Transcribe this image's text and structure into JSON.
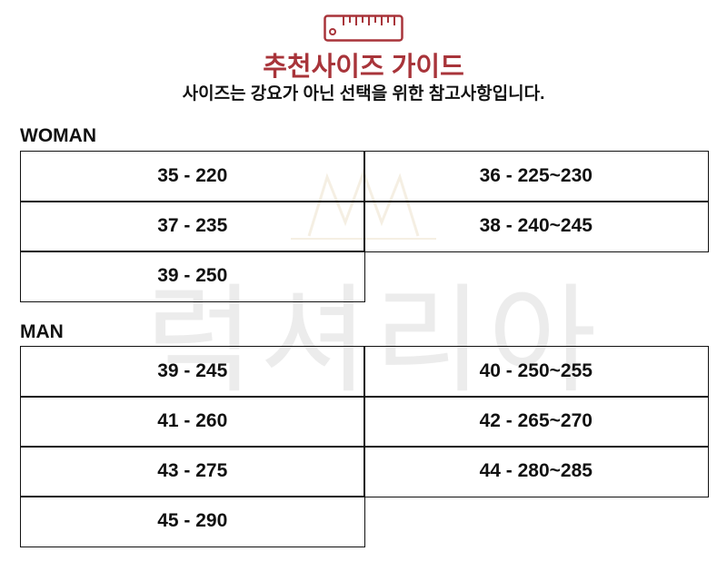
{
  "header": {
    "icon": "ruler-icon",
    "title": "추천사이즈 가이드",
    "subtitle": "사이즈는 강요가 아닌 선택을 위한 참고사항입니다.",
    "accent": "#a8343a"
  },
  "watermark": {
    "text": "럭셔리아",
    "icon": "crown-icon"
  },
  "woman": {
    "label": "WOMAN",
    "sizes": [
      "35 - 220",
      "36 - 225~230",
      "37 - 235",
      "38 - 240~245",
      "39 - 250"
    ]
  },
  "man": {
    "label": "MAN",
    "sizes": [
      "39 - 245",
      "40 - 250~255",
      "41 - 260",
      "42 - 265~270",
      "43 - 275",
      "44 - 280~285",
      "45 - 290"
    ]
  }
}
